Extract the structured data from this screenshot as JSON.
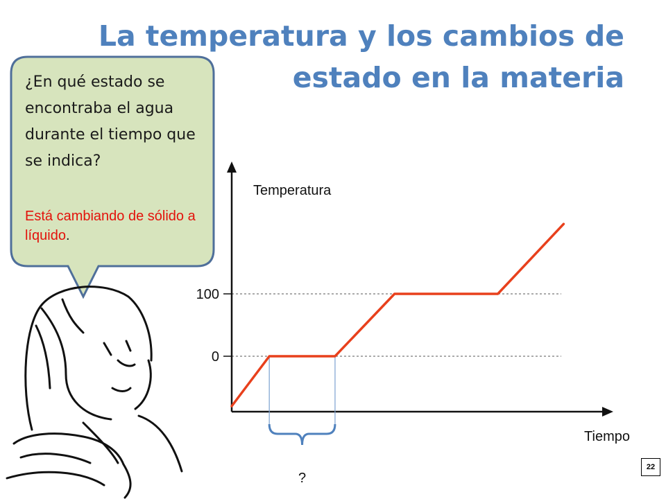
{
  "slide": {
    "title_line1": "La temperatura y los cambios de",
    "title_line2": "estado en la materia",
    "page_number": "22"
  },
  "bubble": {
    "question": "¿En qué estado se encontraba el agua durante el tiempo que se indica?",
    "answer": "Está cambiando de sólido a líquido",
    "answer_end": "."
  },
  "colors": {
    "title": "#4f81bd",
    "line": "#e8401c",
    "bubble_fill": "#d7e4bd",
    "bubble_border": "#4f6f9a",
    "answer": "#e3120b",
    "brace": "#4f81bd"
  },
  "chart_data": {
    "type": "line",
    "xlabel": "Tiempo",
    "ylabel": "Temperatura",
    "yticks": [
      0,
      100
    ],
    "reference_lines": [
      0,
      100
    ],
    "ylim": [
      -85,
      205
    ],
    "xlim": [
      0,
      11.3
    ],
    "series": [
      {
        "x": [
          0,
          1.2,
          3.3,
          5.2,
          8.5,
          10.6
        ],
        "y": [
          -80,
          0,
          0,
          100,
          100,
          212
        ]
      }
    ],
    "annotation": {
      "label": "?",
      "x_range": [
        1.2,
        3.3
      ]
    }
  }
}
